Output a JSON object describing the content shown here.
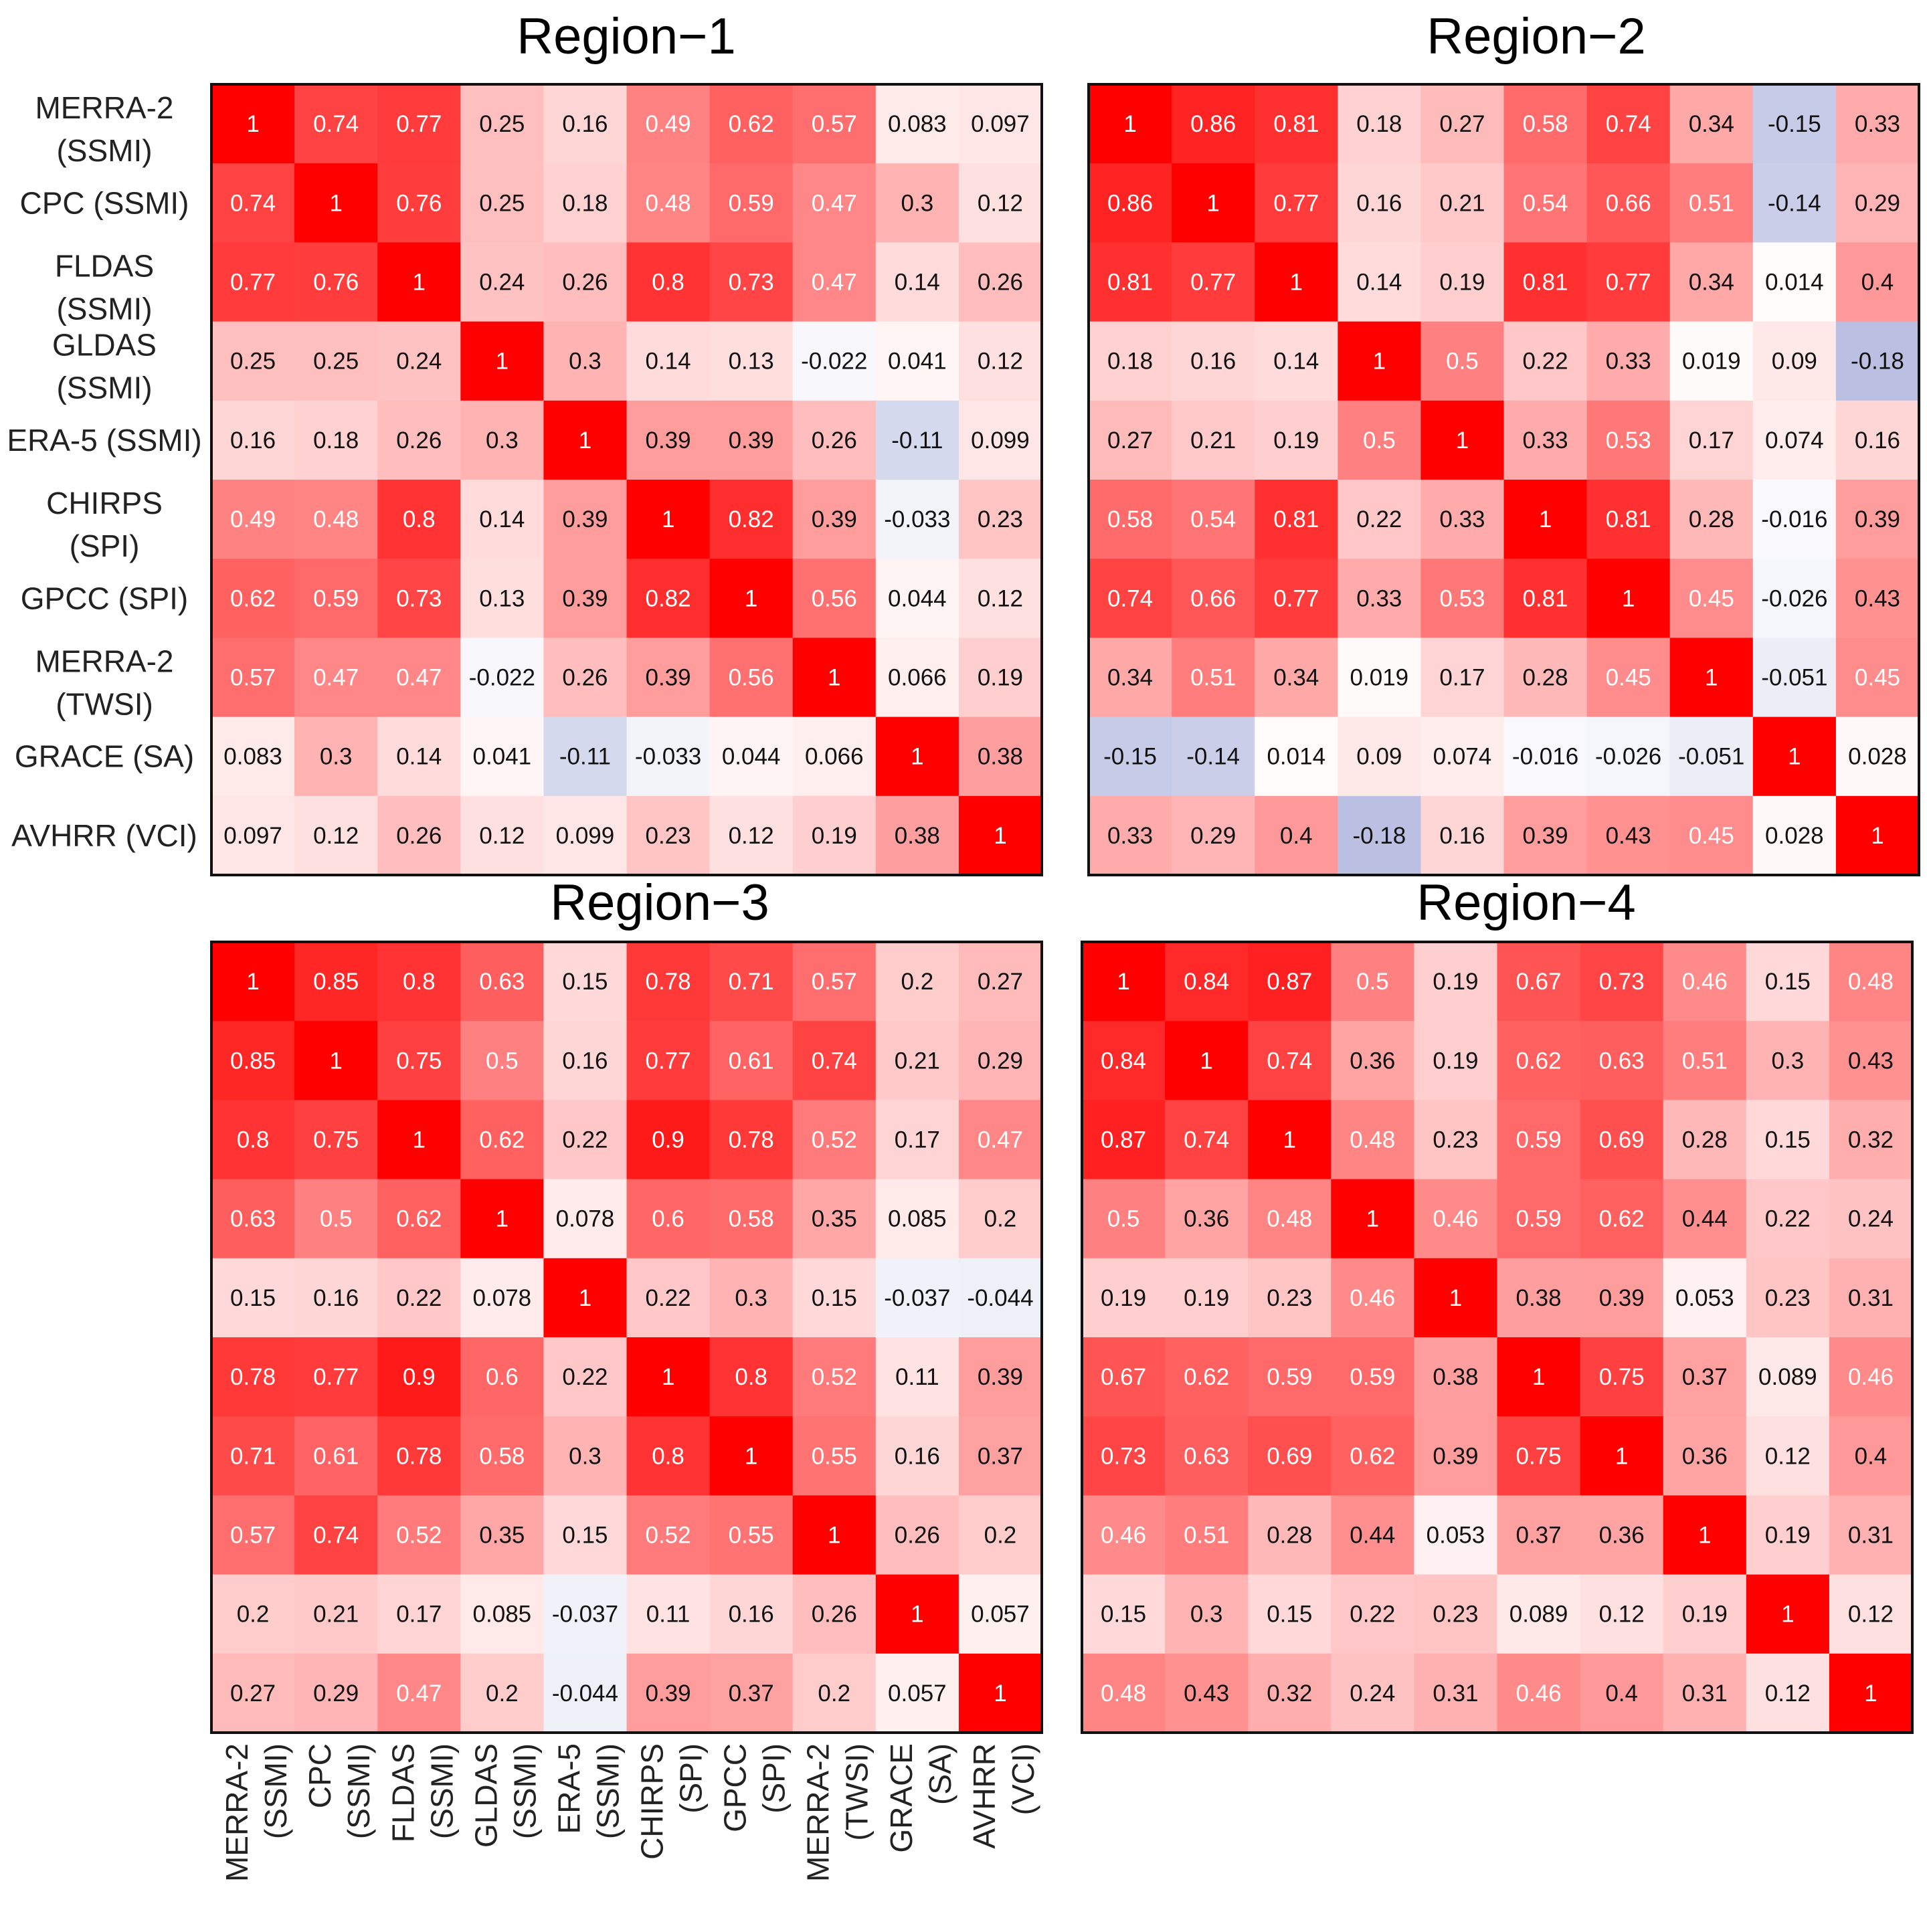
{
  "chart_data": [
    {
      "type": "heatmap",
      "title": "Region−1",
      "row_labels": [
        "MERRA-2 (SSMI)",
        "CPC (SSMI)",
        "FLDAS (SSMI)",
        "GLDAS (SSMI)",
        "ERA-5 (SSMI)",
        "CHIRPS (SPI)",
        "GPCC (SPI)",
        "MERRA-2 (TWSI)",
        "GRACE (SA)",
        "AVHRR (VCI)"
      ],
      "col_labels": [
        "MERRA-2 (SSMI)",
        "CPC (SSMI)",
        "FLDAS (SSMI)",
        "GLDAS (SSMI)",
        "ERA-5 (SSMI)",
        "CHIRPS (SPI)",
        "GPCC (SPI)",
        "MERRA-2 (TWSI)",
        "GRACE (SA)",
        "AVHRR (VCI)"
      ],
      "values": [
        [
          "1",
          "0.74",
          "0.77",
          "0.25",
          "0.16",
          "0.49",
          "0.62",
          "0.57",
          "0.083",
          "0.097"
        ],
        [
          "0.74",
          "1",
          "0.76",
          "0.25",
          "0.18",
          "0.48",
          "0.59",
          "0.47",
          "0.3",
          "0.12"
        ],
        [
          "0.77",
          "0.76",
          "1",
          "0.24",
          "0.26",
          "0.8",
          "0.73",
          "0.47",
          "0.14",
          "0.26"
        ],
        [
          "0.25",
          "0.25",
          "0.24",
          "1",
          "0.3",
          "0.14",
          "0.13",
          "-0.022",
          "0.041",
          "0.12"
        ],
        [
          "0.16",
          "0.18",
          "0.26",
          "0.3",
          "1",
          "0.39",
          "0.39",
          "0.26",
          "-0.11",
          "0.099"
        ],
        [
          "0.49",
          "0.48",
          "0.8",
          "0.14",
          "0.39",
          "1",
          "0.82",
          "0.39",
          "-0.033",
          "0.23"
        ],
        [
          "0.62",
          "0.59",
          "0.73",
          "0.13",
          "0.39",
          "0.82",
          "1",
          "0.56",
          "0.044",
          "0.12"
        ],
        [
          "0.57",
          "0.47",
          "0.47",
          "-0.022",
          "0.26",
          "0.39",
          "0.56",
          "1",
          "0.066",
          "0.19"
        ],
        [
          "0.083",
          "0.3",
          "0.14",
          "0.041",
          "-0.11",
          "-0.033",
          "0.044",
          "0.066",
          "1",
          "0.38"
        ],
        [
          "0.097",
          "0.12",
          "0.26",
          "0.12",
          "0.099",
          "0.23",
          "0.12",
          "0.19",
          "0.38",
          "1"
        ]
      ]
    },
    {
      "type": "heatmap",
      "title": "Region−2",
      "values": [
        [
          "1",
          "0.86",
          "0.81",
          "0.18",
          "0.27",
          "0.58",
          "0.74",
          "0.34",
          "-0.15",
          "0.33"
        ],
        [
          "0.86",
          "1",
          "0.77",
          "0.16",
          "0.21",
          "0.54",
          "0.66",
          "0.51",
          "-0.14",
          "0.29"
        ],
        [
          "0.81",
          "0.77",
          "1",
          "0.14",
          "0.19",
          "0.81",
          "0.77",
          "0.34",
          "0.014",
          "0.4"
        ],
        [
          "0.18",
          "0.16",
          "0.14",
          "1",
          "0.5",
          "0.22",
          "0.33",
          "0.019",
          "0.09",
          "-0.18"
        ],
        [
          "0.27",
          "0.21",
          "0.19",
          "0.5",
          "1",
          "0.33",
          "0.53",
          "0.17",
          "0.074",
          "0.16"
        ],
        [
          "0.58",
          "0.54",
          "0.81",
          "0.22",
          "0.33",
          "1",
          "0.81",
          "0.28",
          "-0.016",
          "0.39"
        ],
        [
          "0.74",
          "0.66",
          "0.77",
          "0.33",
          "0.53",
          "0.81",
          "1",
          "0.45",
          "-0.026",
          "0.43"
        ],
        [
          "0.34",
          "0.51",
          "0.34",
          "0.019",
          "0.17",
          "0.28",
          "0.45",
          "1",
          "-0.051",
          "0.45"
        ],
        [
          "-0.15",
          "-0.14",
          "0.014",
          "0.09",
          "0.074",
          "-0.016",
          "-0.026",
          "-0.051",
          "1",
          "0.028"
        ],
        [
          "0.33",
          "0.29",
          "0.4",
          "-0.18",
          "0.16",
          "0.39",
          "0.43",
          "0.45",
          "0.028",
          "1"
        ]
      ]
    },
    {
      "type": "heatmap",
      "title": "Region−3",
      "values": [
        [
          "1",
          "0.85",
          "0.8",
          "0.63",
          "0.15",
          "0.78",
          "0.71",
          "0.57",
          "0.2",
          "0.27"
        ],
        [
          "0.85",
          "1",
          "0.75",
          "0.5",
          "0.16",
          "0.77",
          "0.61",
          "0.74",
          "0.21",
          "0.29"
        ],
        [
          "0.8",
          "0.75",
          "1",
          "0.62",
          "0.22",
          "0.9",
          "0.78",
          "0.52",
          "0.17",
          "0.47"
        ],
        [
          "0.63",
          "0.5",
          "0.62",
          "1",
          "0.078",
          "0.6",
          "0.58",
          "0.35",
          "0.085",
          "0.2"
        ],
        [
          "0.15",
          "0.16",
          "0.22",
          "0.078",
          "1",
          "0.22",
          "0.3",
          "0.15",
          "-0.037",
          "-0.044"
        ],
        [
          "0.78",
          "0.77",
          "0.9",
          "0.6",
          "0.22",
          "1",
          "0.8",
          "0.52",
          "0.11",
          "0.39"
        ],
        [
          "0.71",
          "0.61",
          "0.78",
          "0.58",
          "0.3",
          "0.8",
          "1",
          "0.55",
          "0.16",
          "0.37"
        ],
        [
          "0.57",
          "0.74",
          "0.52",
          "0.35",
          "0.15",
          "0.52",
          "0.55",
          "1",
          "0.26",
          "0.2"
        ],
        [
          "0.2",
          "0.21",
          "0.17",
          "0.085",
          "-0.037",
          "0.11",
          "0.16",
          "0.26",
          "1",
          "0.057"
        ],
        [
          "0.27",
          "0.29",
          "0.47",
          "0.2",
          "-0.044",
          "0.39",
          "0.37",
          "0.2",
          "0.057",
          "1"
        ]
      ]
    },
    {
      "type": "heatmap",
      "title": "Region−4",
      "values": [
        [
          "1",
          "0.84",
          "0.87",
          "0.5",
          "0.19",
          "0.67",
          "0.73",
          "0.46",
          "0.15",
          "0.48"
        ],
        [
          "0.84",
          "1",
          "0.74",
          "0.36",
          "0.19",
          "0.62",
          "0.63",
          "0.51",
          "0.3",
          "0.43"
        ],
        [
          "0.87",
          "0.74",
          "1",
          "0.48",
          "0.23",
          "0.59",
          "0.69",
          "0.28",
          "0.15",
          "0.32"
        ],
        [
          "0.5",
          "0.36",
          "0.48",
          "1",
          "0.46",
          "0.59",
          "0.62",
          "0.44",
          "0.22",
          "0.24"
        ],
        [
          "0.19",
          "0.19",
          "0.23",
          "0.46",
          "1",
          "0.38",
          "0.39",
          "0.053",
          "0.23",
          "0.31"
        ],
        [
          "0.67",
          "0.62",
          "0.59",
          "0.59",
          "0.38",
          "1",
          "0.75",
          "0.37",
          "0.089",
          "0.46"
        ],
        [
          "0.73",
          "0.63",
          "0.69",
          "0.62",
          "0.39",
          "0.75",
          "1",
          "0.36",
          "0.12",
          "0.4"
        ],
        [
          "0.46",
          "0.51",
          "0.28",
          "0.44",
          "0.053",
          "0.37",
          "0.36",
          "1",
          "0.19",
          "0.31"
        ],
        [
          "0.15",
          "0.3",
          "0.15",
          "0.22",
          "0.23",
          "0.089",
          "0.12",
          "0.19",
          "1",
          "0.12"
        ],
        [
          "0.48",
          "0.43",
          "0.32",
          "0.24",
          "0.31",
          "0.46",
          "0.4",
          "0.31",
          "0.12",
          "1"
        ]
      ]
    }
  ],
  "colors": {
    "positive": "#ff0000",
    "negative": "#a0a8d8",
    "neutral": "#ffffff",
    "frame": "#111111"
  }
}
